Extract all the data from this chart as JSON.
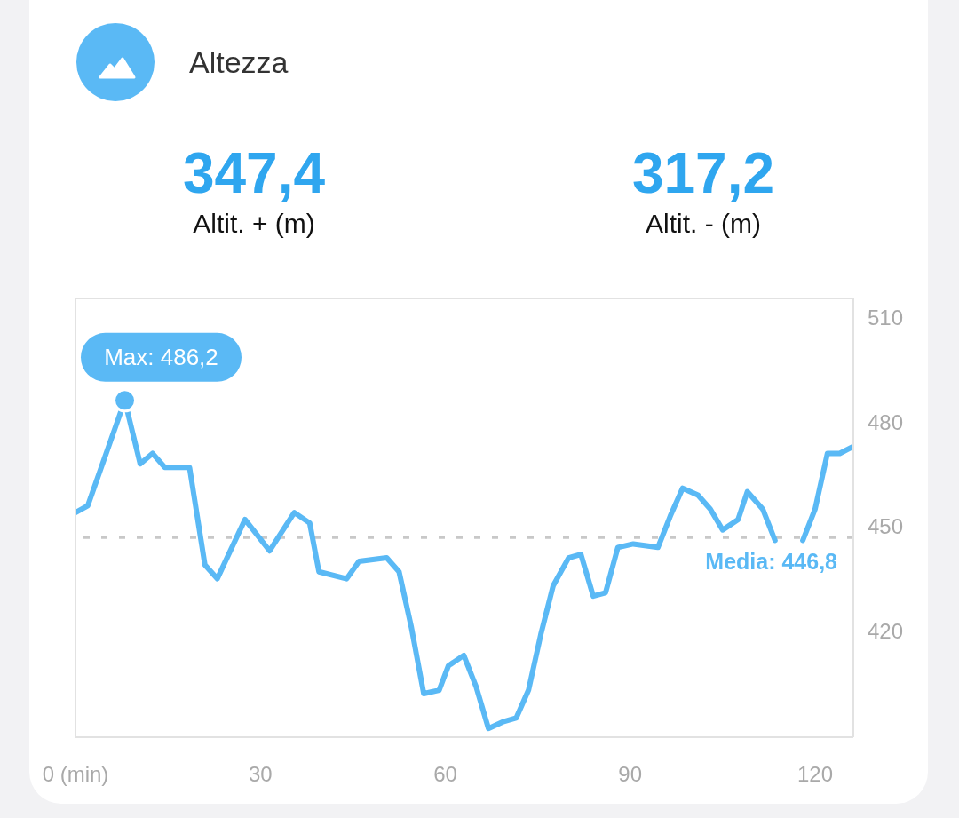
{
  "chart_data": {
    "type": "line",
    "title": "Altezza",
    "annotations": [
      "347,4\nAltit. + (m)",
      "317,2\nAltit. - (m)",
      {
        "text": "Max: 486,2",
        "x": 8,
        "y": 486.2
      }
    ],
    "x": [
      0,
      2,
      8,
      10.5,
      12.5,
      14.5,
      18.5,
      21,
      23,
      27.5,
      31.5,
      35.5,
      38,
      39.5,
      44,
      46,
      50.5,
      52.5,
      54.5,
      56.5,
      59,
      60.5,
      63,
      65,
      67,
      69.5,
      71.5,
      73.5,
      75.5,
      77.5,
      80,
      82,
      84,
      86,
      88,
      90.5,
      94.5,
      96.5,
      98.5,
      101,
      103,
      105,
      107.5,
      109,
      111.5,
      113.5,
      115.5,
      118,
      120,
      122,
      124,
      126.2
    ],
    "series": [
      {
        "color": "#5ab9f5",
        "values": [
          454,
          456,
          486.2,
          468,
          471,
          467,
          467,
          439,
          435,
          452,
          443,
          454,
          451,
          437,
          435,
          440,
          441,
          437,
          421,
          402,
          403,
          410,
          413,
          404,
          392,
          394,
          395,
          403,
          419,
          433,
          441,
          442,
          430,
          431,
          444,
          445,
          444,
          453,
          461,
          459,
          455,
          449,
          452,
          460,
          455,
          446,
          null,
          446,
          455,
          471,
          471,
          473
        ]
      }
    ],
    "xlim": [
      0,
      126.2
    ],
    "xticks": [
      {
        "value": 0,
        "label": "0 (min)"
      },
      30,
      60,
      90,
      120
    ],
    "ylim": [
      389.5,
      515.5
    ],
    "yticks": [
      420,
      450,
      480,
      510
    ],
    "ref_lines": [
      {
        "axis": "y",
        "value": 446.8,
        "label": "Media: 446,8",
        "color": "#c8c8c8",
        "line_style": "dashed"
      }
    ]
  }
}
